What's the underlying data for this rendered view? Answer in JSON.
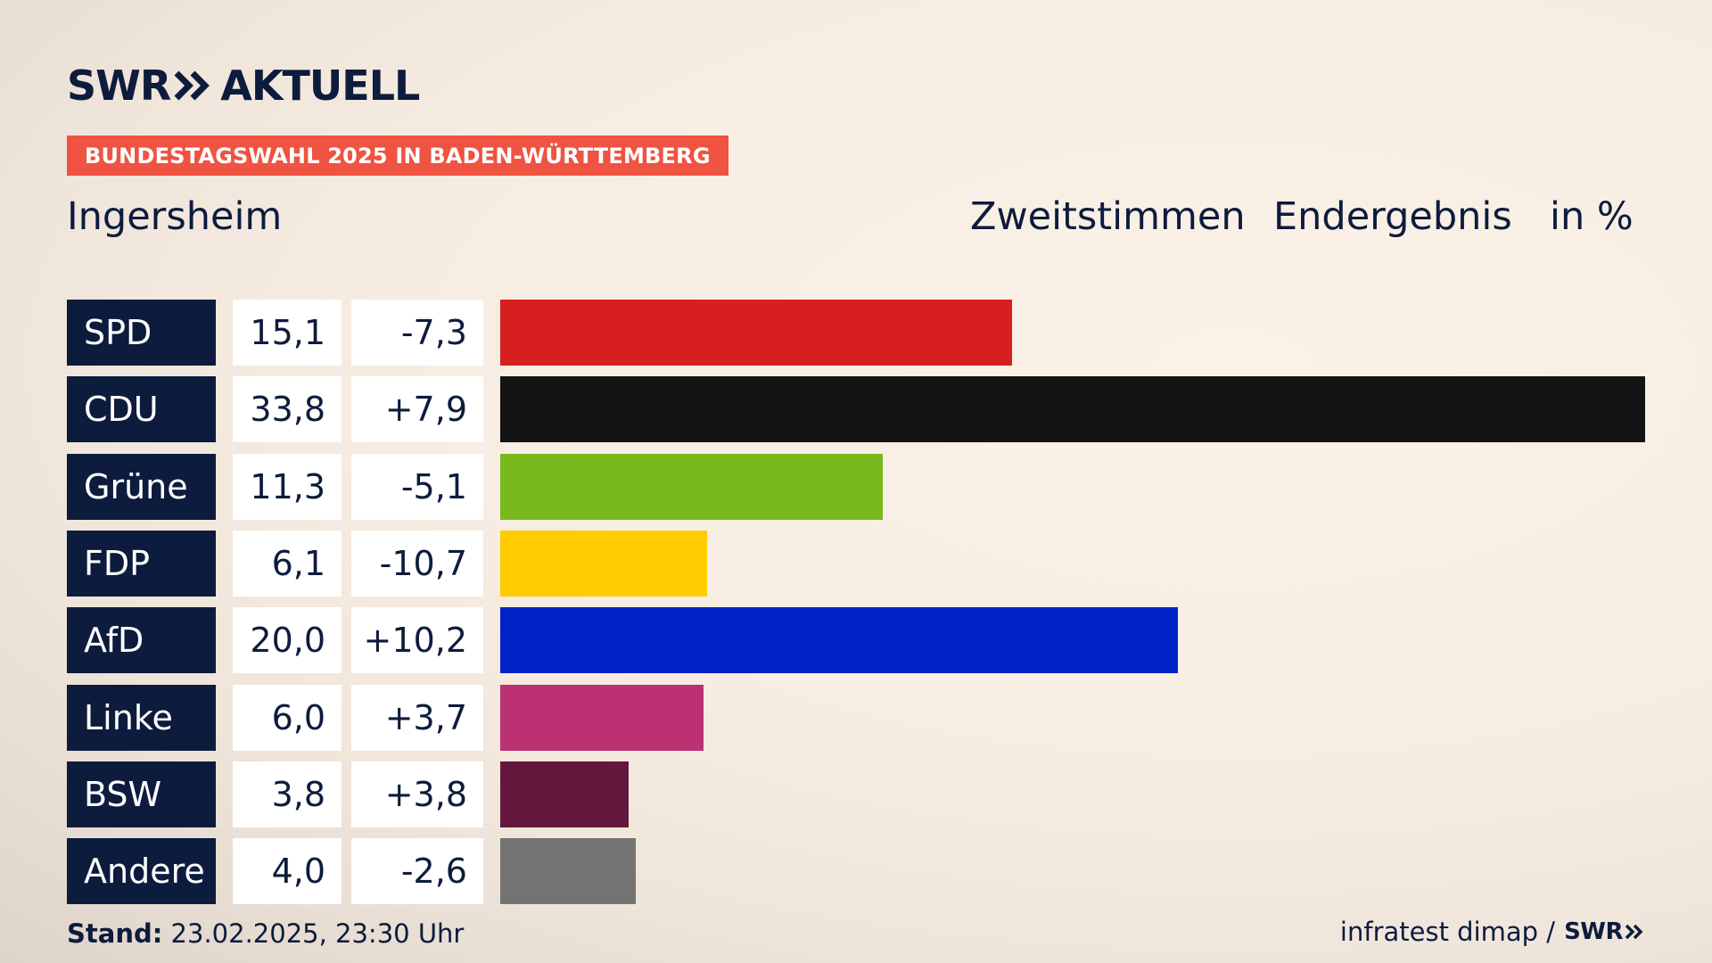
{
  "brand": {
    "swr": "SWR",
    "aktuell": "AKTUELL"
  },
  "badge": "BUNDESTAGSWAHL 2025 IN BADEN-WÜRTTEMBERG",
  "place": "Ingersheim",
  "header": {
    "vote": "Zweitstimmen",
    "status": "Endergebnis",
    "unit": "in %"
  },
  "colors": {
    "navy": "#0d1b3d",
    "badge": "#ef5341"
  },
  "chart_data": {
    "type": "bar",
    "categories": [
      "SPD",
      "CDU",
      "Grüne",
      "FDP",
      "AfD",
      "Linke",
      "BSW",
      "Andere"
    ],
    "values": [
      15.1,
      33.8,
      11.3,
      6.1,
      20.0,
      6.0,
      3.8,
      4.0
    ],
    "value_labels": [
      "15,1",
      "33,8",
      "11,3",
      "6,1",
      "20,0",
      "6,0",
      "3,8",
      "4,0"
    ],
    "diff_labels": [
      "-7,3",
      "+7,9",
      "-5,1",
      "-10,7",
      "+10,2",
      "+3,7",
      "+3,8",
      "-2,6"
    ],
    "colors": [
      "#d71f1f",
      "#141414",
      "#7ab91d",
      "#ffcc00",
      "#0022c6",
      "#bb3172",
      "#64173c",
      "#737373"
    ],
    "orientation": "horizontal",
    "grid": false
  },
  "footer": {
    "stand_label": "Stand:",
    "stand_value": "23.02.2025, 23:30 Uhr",
    "source": "infratest dimap /",
    "logo": "SWR"
  }
}
